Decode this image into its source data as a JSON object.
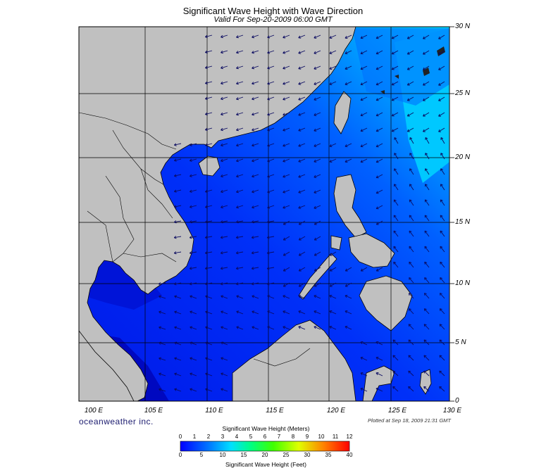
{
  "header": {
    "title": "Significant Wave Height with Wave Direction",
    "subtitle": "Valid For Sep-20-2009 06:00 GMT"
  },
  "axes": {
    "lat_labels": [
      "30 N",
      "25 N",
      "20 N",
      "15 N",
      "10 N",
      "5 N",
      "0"
    ],
    "lon_labels": [
      "100 E",
      "105 E",
      "110 E",
      "115 E",
      "120 E",
      "125 E",
      "130 E"
    ]
  },
  "footer": {
    "brand": "oceanweather inc.",
    "plotted": "Plotted at Sep 18, 2009 21:31 GMT"
  },
  "legend": {
    "meters_title": "Significant Wave Height (Meters)",
    "meters_ticks": [
      "0",
      "1",
      "2",
      "3",
      "4",
      "5",
      "6",
      "7",
      "8",
      "9",
      "10",
      "11",
      "12"
    ],
    "feet_title": "Significant Wave Height (Feet)",
    "feet_ticks": [
      "0",
      "5",
      "10",
      "15",
      "20",
      "25",
      "30",
      "35",
      "40"
    ]
  },
  "colors": {
    "land": "#c0c0c0",
    "deep": "#0010e0",
    "mid": "#0044ff",
    "light": "#0088ff",
    "cyan": "#00ccff",
    "arrow": "#0a0a60"
  }
}
